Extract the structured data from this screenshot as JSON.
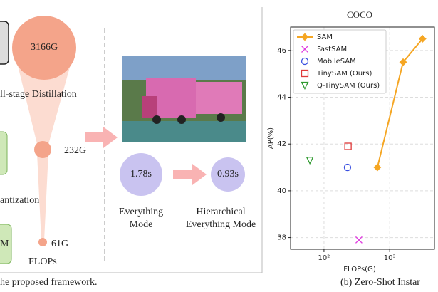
{
  "left_panel": {
    "flops_large": "3166G",
    "stage_label": "ll-stage Distillation",
    "flops_mid": "232G",
    "quant_label": "antization",
    "box_label": "M",
    "flops_small": "61G",
    "flops_caption": "FLOPs",
    "time_everything": "1.78s",
    "time_hierarchical": "0.93s",
    "mode_everything": [
      "Everything",
      "Mode"
    ],
    "mode_hierarchical": [
      "Hierarchical",
      "Everything Mode"
    ],
    "caption": "he proposed framework."
  },
  "chart_data": {
    "type": "scatter",
    "title": "COCO",
    "x_label": "FLOPs(G)",
    "y_label": "AP(%)",
    "caption": "(b) Zero-Shot Instar",
    "x_scale": "log",
    "xlim": [
      31,
      4800
    ],
    "xticks": [
      {
        "value": 100,
        "label": "10²"
      },
      {
        "value": 1000,
        "label": "10³"
      }
    ],
    "ylim": [
      37.5,
      47
    ],
    "yticks": [
      38,
      40,
      42,
      44,
      46
    ],
    "grid": true,
    "legend": "upper left",
    "series": [
      {
        "name": "SAM",
        "color": "#f5a623",
        "marker": "diamond",
        "line": true,
        "x": [
          650,
          1600,
          3166
        ],
        "values": [
          41.0,
          45.5,
          46.5
        ]
      },
      {
        "name": "FastSAM",
        "color": "#e040e0",
        "marker": "x",
        "x": [
          340
        ],
        "values": [
          37.9
        ]
      },
      {
        "name": "MobileSAM",
        "color": "#3a50e0",
        "marker": "circle",
        "x": [
          228
        ],
        "values": [
          41.0
        ]
      },
      {
        "name": "TinySAM (Ours)",
        "color": "#e03a3a",
        "marker": "square",
        "x": [
          232
        ],
        "values": [
          41.9
        ]
      },
      {
        "name": "Q-TinySAM (Ours)",
        "color": "#2e9a2e",
        "marker": "triangle_down",
        "x": [
          61
        ],
        "values": [
          41.3
        ]
      }
    ]
  }
}
